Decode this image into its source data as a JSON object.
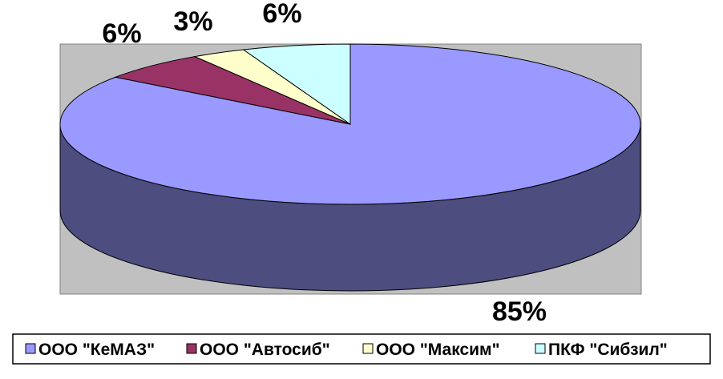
{
  "chart_data": {
    "type": "pie",
    "categories": [
      "ООО \"КеМАЗ\"",
      "ООО \"Автосиб\"",
      "ООО \"Максим\"",
      "ПКФ \"Сибзил\""
    ],
    "values": [
      85,
      6,
      3,
      6
    ],
    "labels": [
      "85%",
      "6%",
      "3%",
      "6%"
    ],
    "colors": [
      "#9999ff",
      "#993366",
      "#ffffcc",
      "#ccffff"
    ],
    "side_colors": [
      "#4d4d80",
      "#4d1a33",
      "#808066",
      "#668080"
    ],
    "plot_area_color": "#c0c0c0",
    "legend_position": "bottom",
    "three_d": true
  }
}
